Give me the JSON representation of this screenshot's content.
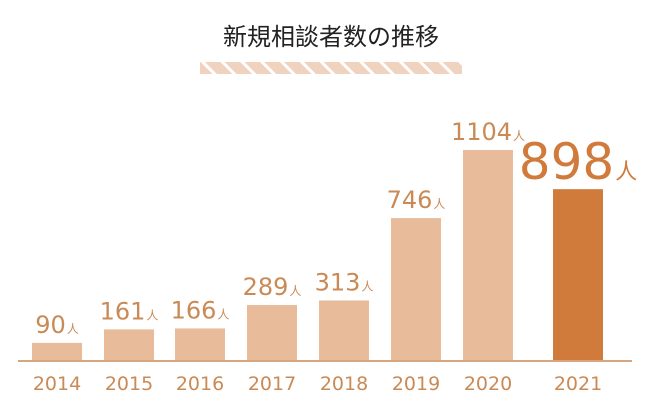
{
  "chart_data": {
    "type": "bar",
    "title": "新規相談者数の推移",
    "unit": "人",
    "categories": [
      "2014",
      "2015",
      "2016",
      "2017",
      "2018",
      "2019",
      "2020",
      "2021"
    ],
    "values": [
      90,
      161,
      166,
      289,
      313,
      746,
      1104,
      898
    ],
    "highlight_category": "2021",
    "grid": false,
    "legend": "none",
    "ylim": [
      0,
      1104
    ]
  },
  "colors": {
    "bar": "#e8bc9b",
    "bar_highlight": "#d07a3c",
    "label": "#c98a55",
    "label_highlight": "#d07a3c",
    "axis": "#c98a55",
    "tick_label": "#c98a55",
    "title": "#222222",
    "title_band": "#f0d3bf",
    "title_band_stripe": "#ffffff"
  }
}
